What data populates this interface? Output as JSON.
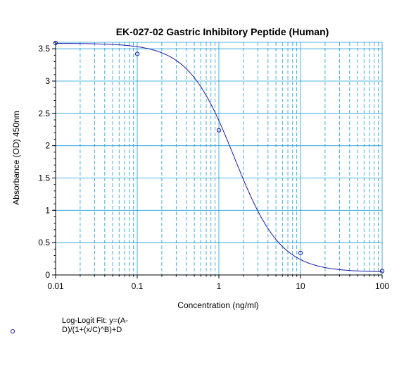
{
  "chart_data": {
    "type": "line",
    "title": "EK-027-02 Gastric Inhibitory Peptide (Human)",
    "xlabel": "Concentration (ng/ml)",
    "ylabel": "Absorbance (OD) 450nm",
    "x_scale": "log",
    "xlim": [
      0.01,
      100
    ],
    "ylim": [
      0,
      3.6
    ],
    "x_ticks": [
      "0.01",
      "0.1",
      "1",
      "10",
      "100"
    ],
    "x_tick_values": [
      0.01,
      0.1,
      1,
      10,
      100
    ],
    "y_ticks": [
      "0",
      "0.5",
      "1",
      "1.5",
      "2",
      "2.5",
      "3",
      "3.5"
    ],
    "y_tick_values": [
      0,
      0.5,
      1,
      1.5,
      2,
      2.5,
      3,
      3.5
    ],
    "grid": true,
    "series": [
      {
        "kind": "points",
        "x": [
          0.01,
          0.1,
          1,
          10,
          100
        ],
        "y": [
          3.59,
          3.42,
          2.24,
          0.34,
          0.06
        ]
      }
    ],
    "fit": {
      "model": "4PL",
      "A": 3.585,
      "B": 1.53,
      "C": 1.55,
      "D": 0.045
    },
    "legend": {
      "text": "Log-Logit Fit: y=(A-D)/(1+(x/C)^B)+D",
      "position": "bottom-left"
    },
    "colors": {
      "axis": "#000000",
      "grid": "#1a9bd6",
      "curve": "#1a1aa6",
      "points": "#1a1aa6"
    }
  }
}
